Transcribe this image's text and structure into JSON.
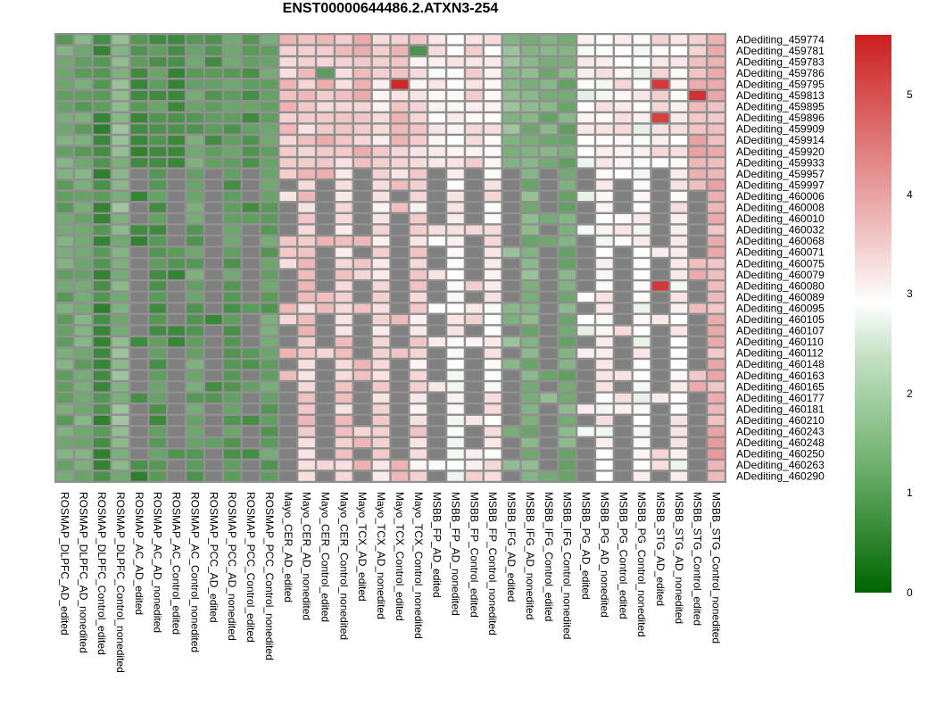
{
  "chart_data": {
    "type": "heatmap",
    "title": "ENST00000644486.2.ATXN3-254",
    "rows": [
      "ADediting_459774",
      "ADediting_459781",
      "ADediting_459783",
      "ADediting_459786",
      "ADediting_459795",
      "ADediting_459813",
      "ADediting_459895",
      "ADediting_459896",
      "ADediting_459909",
      "ADediting_459914",
      "ADediting_459920",
      "ADediting_459933",
      "ADediting_459957",
      "ADediting_459997",
      "ADediting_460006",
      "ADediting_460008",
      "ADediting_460010",
      "ADediting_460032",
      "ADediting_460068",
      "ADediting_460071",
      "ADediting_460075",
      "ADediting_460079",
      "ADediting_460080",
      "ADediting_460089",
      "ADediting_460095",
      "ADediting_460105",
      "ADediting_460107",
      "ADediting_460110",
      "ADediting_460112",
      "ADediting_460148",
      "ADediting_460163",
      "ADediting_460165",
      "ADediting_460177",
      "ADediting_460181",
      "ADediting_460210",
      "ADediting_460243",
      "ADediting_460248",
      "ADediting_460250",
      "ADediting_460263",
      "ADediting_460290"
    ],
    "columns": [
      "ROSMAP_DLPFC_AD_edited",
      "ROSMAP_DLPFC_AD_nonedited",
      "ROSMAP_DLPFC_Control_edited",
      "ROSMAP_DLPFC_Control_nonedited",
      "ROSMAP_AC_AD_edited",
      "ROSMAP_AC_AD_nonedited",
      "ROSMAP_AC_Control_edited",
      "ROSMAP_AC_Control_nonedited",
      "ROSMAP_PCC_AD_edited",
      "ROSMAP_PCC_AD_nonedited",
      "ROSMAP_PCC_Control_edited",
      "ROSMAP_PCC_Control_nonedited",
      "Mayo_CER_AD_edited",
      "Mayo_CER_AD_nonedited",
      "Mayo_CER_Control_edited",
      "Mayo_CER_Control_nonedited",
      "Mayo_TCX_AD_edited",
      "Mayo_TCX_AD_nonedited",
      "Mayo_TCX_Control_edited",
      "Mayo_TCX_Control_nonedited",
      "MSBB_FP_AD_edited",
      "MSBB_FP_AD_nonedited",
      "MSBB_FP_Control_edited",
      "MSBB_FP_Control_nonedited",
      "MSBB_IFG_AD_edited",
      "MSBB_IFG_AD_nonedited",
      "MSBB_IFG_Control_edited",
      "MSBB_IFG_Control_nonedited",
      "MSBB_PG_AD_edited",
      "MSBB_PG_AD_nonedited",
      "MSBB_PG_Control_edited",
      "MSBB_PG_Control_nonedited",
      "MSBB_STG_AD_edited",
      "MSBB_STG_AD_nonedited",
      "MSBB_STG_Control_edited",
      "MSBB_STG_Control_nonedited"
    ],
    "column_base_values": [
      1.3,
      1.3,
      0.8,
      1.6,
      0.8,
      1.0,
      0.9,
      1.2,
      0.9,
      1.1,
      1.0,
      1.2,
      3.6,
      3.6,
      3.7,
      3.5,
      3.7,
      3.4,
      3.6,
      3.4,
      3.2,
      3.1,
      3.3,
      3.2,
      1.6,
      1.5,
      1.5,
      1.4,
      3.0,
      3.1,
      3.2,
      3.0,
      3.3,
      3.1,
      3.8,
      3.9
    ],
    "missing_value": null,
    "notable_cells": [
      {
        "row": "ADediting_459795",
        "column": "Mayo_TCX_Control_edited",
        "value": 5.5
      },
      {
        "row": "ADediting_459795",
        "column": "MSBB_STG_AD_edited",
        "value": 5.3
      },
      {
        "row": "ADediting_459813",
        "column": "MSBB_STG_Control_edited",
        "value": 5.4
      },
      {
        "row": "ADediting_459896",
        "column": "MSBB_STG_AD_edited",
        "value": 5.2
      },
      {
        "row": "ADediting_460080",
        "column": "MSBB_STG_AD_edited",
        "value": 5.3
      },
      {
        "row": "ADediting_459781",
        "column": "Mayo_TCX_Control_nonedited",
        "value": 0.9
      },
      {
        "row": "ADediting_459786",
        "column": "Mayo_CER_Control_edited",
        "value": 1.1
      }
    ],
    "scale": {
      "min": 0,
      "max": 5.6,
      "ticks": [
        0,
        1,
        2,
        3,
        4,
        5
      ],
      "low_color": "#006400",
      "mid_color": "#ffffff",
      "high_color": "#cc1f1f",
      "missing_color": "#808080"
    }
  }
}
